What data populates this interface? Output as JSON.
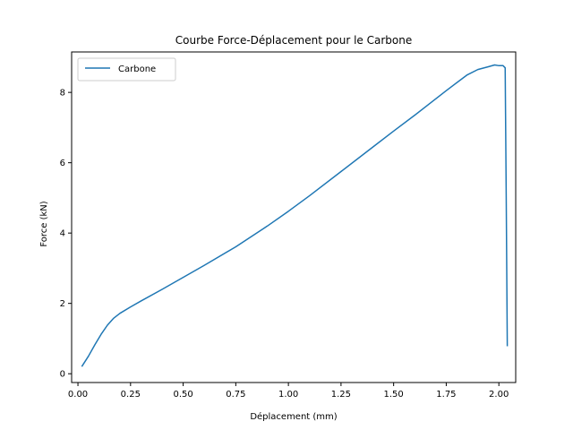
{
  "chart_data": {
    "type": "line",
    "title": "Courbe Force-Déplacement pour le Carbone",
    "xlabel": "Déplacement (mm)",
    "ylabel": "Force (kN)",
    "xlim": [
      -0.03,
      2.08
    ],
    "ylim": [
      -0.25,
      9.15
    ],
    "xticks": [
      0.0,
      0.25,
      0.5,
      0.75,
      1.0,
      1.25,
      1.5,
      1.75,
      2.0
    ],
    "xtick_labels": [
      "0.00",
      "0.25",
      "0.50",
      "0.75",
      "1.00",
      "1.25",
      "1.50",
      "1.75",
      "2.00"
    ],
    "yticks": [
      0,
      2,
      4,
      6,
      8
    ],
    "ytick_labels": [
      "0",
      "2",
      "4",
      "6",
      "8"
    ],
    "grid": false,
    "legend": {
      "position": "top-left",
      "entries": [
        "Carbone"
      ]
    },
    "series": [
      {
        "name": "Carbone",
        "color": "#1f77b4",
        "x": [
          0.02,
          0.05,
          0.08,
          0.11,
          0.14,
          0.17,
          0.2,
          0.25,
          0.3,
          0.4,
          0.5,
          0.6,
          0.75,
          0.9,
          1.0,
          1.1,
          1.25,
          1.4,
          1.5,
          1.6,
          1.75,
          1.85,
          1.9,
          1.95,
          1.98,
          2.0,
          2.02,
          2.03,
          2.035,
          2.04
        ],
        "y": [
          0.22,
          0.5,
          0.82,
          1.12,
          1.38,
          1.58,
          1.72,
          1.9,
          2.07,
          2.4,
          2.74,
          3.08,
          3.61,
          4.2,
          4.62,
          5.06,
          5.75,
          6.44,
          6.9,
          7.35,
          8.05,
          8.5,
          8.65,
          8.73,
          8.78,
          8.76,
          8.76,
          8.7,
          5.0,
          0.8
        ]
      }
    ]
  }
}
